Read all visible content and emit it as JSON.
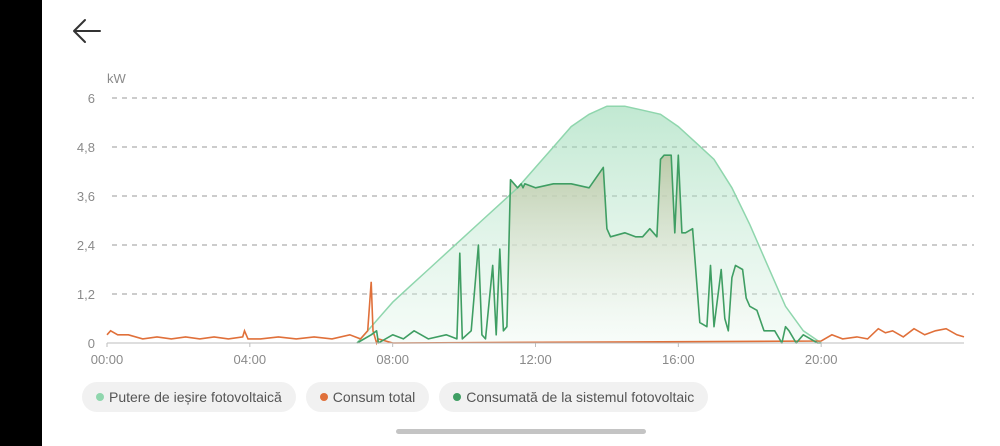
{
  "nav": {
    "back_icon": "arrow-left-icon"
  },
  "colors": {
    "pv_output": "#8fd6ad",
    "pv_fill": "#e2f5e9",
    "total_consumption": "#e0703a",
    "pv_consumed": "#3f9e63",
    "pv_consumed_fill": "#b8c4a0"
  },
  "legend": [
    {
      "label": "Putere de ieșire fotovoltaică",
      "color": "#8fd6ad"
    },
    {
      "label": "Consum total",
      "color": "#e0703a"
    },
    {
      "label": "Consumată de la sistemul fotovoltaic",
      "color": "#3f9e63"
    }
  ],
  "chart_data": {
    "type": "area",
    "ylabel": "kW",
    "ylim": [
      0,
      6
    ],
    "y_ticks": [
      "0",
      "1,2",
      "2,4",
      "3,6",
      "4,8",
      "6"
    ],
    "xlim": [
      0,
      24
    ],
    "x_ticks": [
      "00:00",
      "04:00",
      "08:00",
      "12:00",
      "16:00",
      "20:00"
    ],
    "grid": "horizontal dashed",
    "series": [
      {
        "name": "Putere de ieșire fotovoltaică",
        "x": [
          7.0,
          7.5,
          8.0,
          8.5,
          9.0,
          9.5,
          10.0,
          10.5,
          11.0,
          11.5,
          12.0,
          12.5,
          13.0,
          13.5,
          14.0,
          14.5,
          15.0,
          15.5,
          16.0,
          16.5,
          17.0,
          17.5,
          18.0,
          18.5,
          19.0,
          19.5,
          20.0
        ],
        "values": [
          0.0,
          0.5,
          1.0,
          1.4,
          1.8,
          2.2,
          2.6,
          3.0,
          3.4,
          3.8,
          4.3,
          4.8,
          5.3,
          5.6,
          5.8,
          5.8,
          5.7,
          5.6,
          5.3,
          4.9,
          4.5,
          3.8,
          2.9,
          1.9,
          0.9,
          0.3,
          0.0
        ]
      },
      {
        "name": "Consum total",
        "x": [
          0.0,
          0.1,
          0.3,
          0.6,
          1.0,
          1.4,
          1.8,
          2.2,
          2.6,
          3.0,
          3.4,
          3.8,
          3.85,
          3.95,
          4.3,
          4.8,
          5.3,
          5.8,
          6.3,
          6.8,
          7.1,
          7.3,
          7.4,
          7.45,
          7.55,
          7.6,
          8.0,
          20.0,
          20.3,
          20.6,
          21.0,
          21.3,
          21.6,
          21.8,
          22.0,
          22.3,
          22.6,
          22.9,
          23.2,
          23.5,
          23.8,
          24.0
        ],
        "values": [
          0.2,
          0.3,
          0.2,
          0.2,
          0.1,
          0.15,
          0.1,
          0.15,
          0.1,
          0.15,
          0.1,
          0.15,
          0.3,
          0.1,
          0.1,
          0.15,
          0.1,
          0.15,
          0.1,
          0.2,
          0.1,
          0.3,
          1.5,
          0.3,
          0.0,
          0.1,
          0.0,
          0.05,
          0.2,
          0.1,
          0.15,
          0.1,
          0.35,
          0.25,
          0.3,
          0.15,
          0.35,
          0.2,
          0.3,
          0.35,
          0.2,
          0.15
        ]
      },
      {
        "name": "Consumată de la sistemul fotovoltaic",
        "x": [
          7.0,
          7.4,
          7.55,
          7.6,
          8.0,
          8.3,
          8.6,
          9.0,
          9.5,
          9.8,
          9.88,
          9.95,
          10.2,
          10.4,
          10.5,
          10.6,
          10.8,
          10.9,
          11.0,
          11.1,
          11.2,
          11.3,
          11.5,
          11.6,
          11.65,
          11.7,
          12.0,
          12.5,
          13.0,
          13.5,
          13.9,
          14.0,
          14.1,
          14.5,
          14.8,
          15.0,
          15.2,
          15.4,
          15.5,
          15.6,
          15.8,
          15.9,
          16.0,
          16.1,
          16.2,
          16.4,
          16.6,
          16.8,
          16.9,
          17.0,
          17.2,
          17.3,
          17.4,
          17.5,
          17.6,
          17.8,
          17.9,
          18.0,
          18.2,
          18.4,
          18.7,
          18.9,
          19.0,
          19.1,
          19.3,
          19.5,
          19.7,
          19.9,
          20.0
        ],
        "values": [
          0.0,
          0.2,
          0.3,
          0.0,
          0.2,
          0.1,
          0.3,
          0.1,
          0.2,
          0.1,
          2.2,
          0.1,
          0.3,
          2.4,
          0.2,
          0.1,
          1.9,
          0.2,
          2.3,
          0.3,
          0.4,
          4.0,
          3.8,
          3.9,
          3.8,
          3.9,
          3.8,
          3.9,
          3.9,
          3.8,
          4.3,
          2.8,
          2.6,
          2.7,
          2.6,
          2.6,
          2.8,
          2.6,
          4.5,
          4.6,
          4.6,
          2.7,
          4.6,
          2.7,
          2.7,
          2.8,
          0.5,
          0.4,
          1.9,
          0.4,
          1.8,
          0.6,
          0.3,
          1.6,
          1.9,
          1.8,
          1.1,
          0.9,
          0.8,
          0.3,
          0.3,
          0.0,
          0.4,
          0.3,
          0.0,
          0.2,
          0.1,
          0.0,
          0.0
        ]
      }
    ]
  }
}
